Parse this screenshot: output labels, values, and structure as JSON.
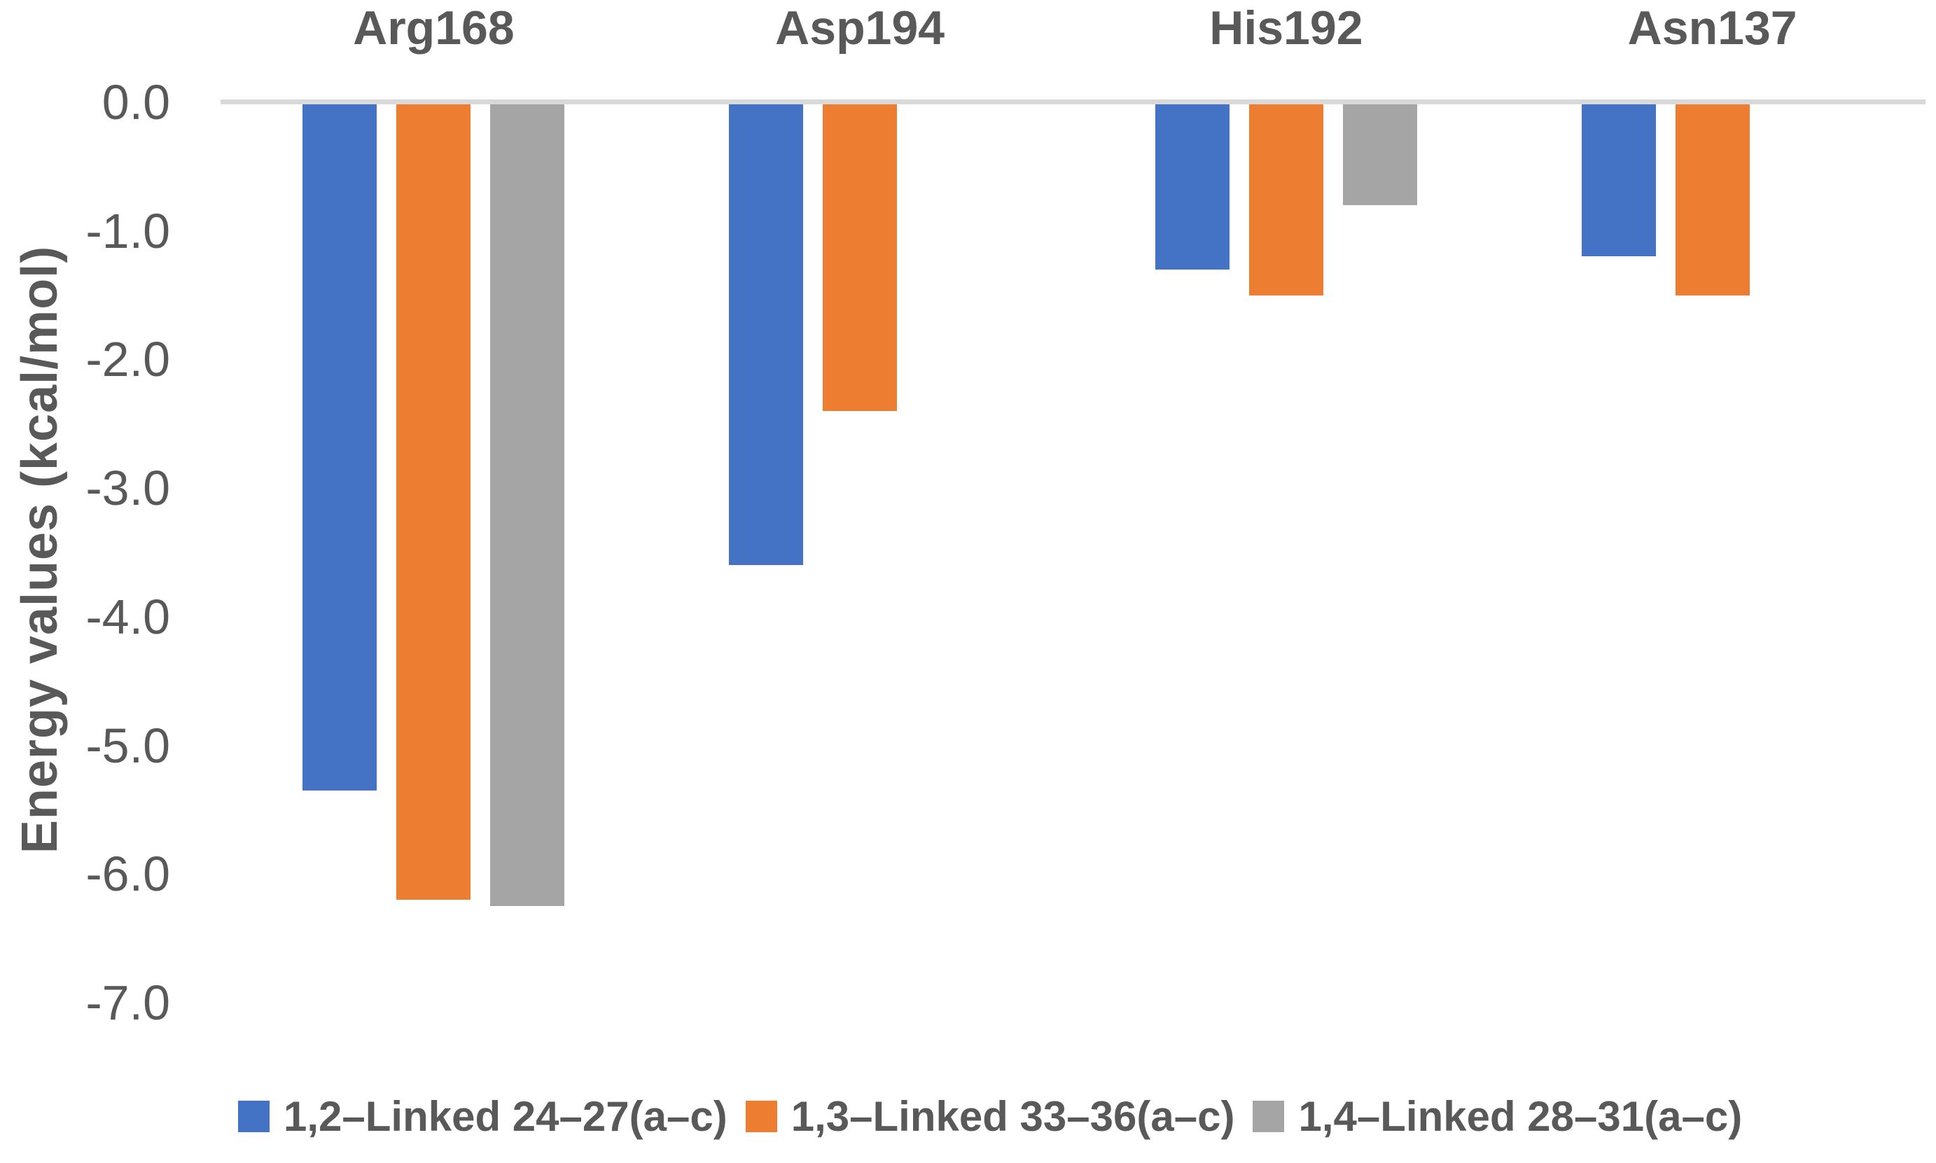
{
  "chart_data": {
    "type": "bar",
    "title": "",
    "ylabel": "Energy values (kcal/mol)",
    "xlabel": "",
    "categories": [
      "Arg168",
      "Asp194",
      "His192",
      "Asn137"
    ],
    "series": [
      {
        "name": "1,2–Linked 24–27(a–c)",
        "color": "#4472C4",
        "values": [
          -5.35,
          -3.6,
          -1.3,
          -1.2
        ]
      },
      {
        "name": "1,3–Linked 33–36(a–c)",
        "color": "#ED7D31",
        "values": [
          -6.2,
          -2.4,
          -1.5,
          -1.5
        ]
      },
      {
        "name": "1,4–Linked 28–31(a–c)",
        "color": "#A5A5A5",
        "values": [
          -6.25,
          null,
          -0.8,
          null
        ]
      }
    ],
    "yticks": [
      0.0,
      -1.0,
      -2.0,
      -3.0,
      -4.0,
      -5.0,
      -6.0,
      -7.0
    ],
    "ytick_labels": [
      "0.0",
      "-1.0",
      "-2.0",
      "-3.0",
      "-4.0",
      "-5.0",
      "-6.0",
      "-7.0"
    ],
    "ylim": [
      -7.5,
      0
    ],
    "grid": false,
    "legend_position": "bottom",
    "colors": {
      "text": "#595959",
      "axis_line": "#D9D9D9",
      "background": "#FFFFFF"
    }
  }
}
